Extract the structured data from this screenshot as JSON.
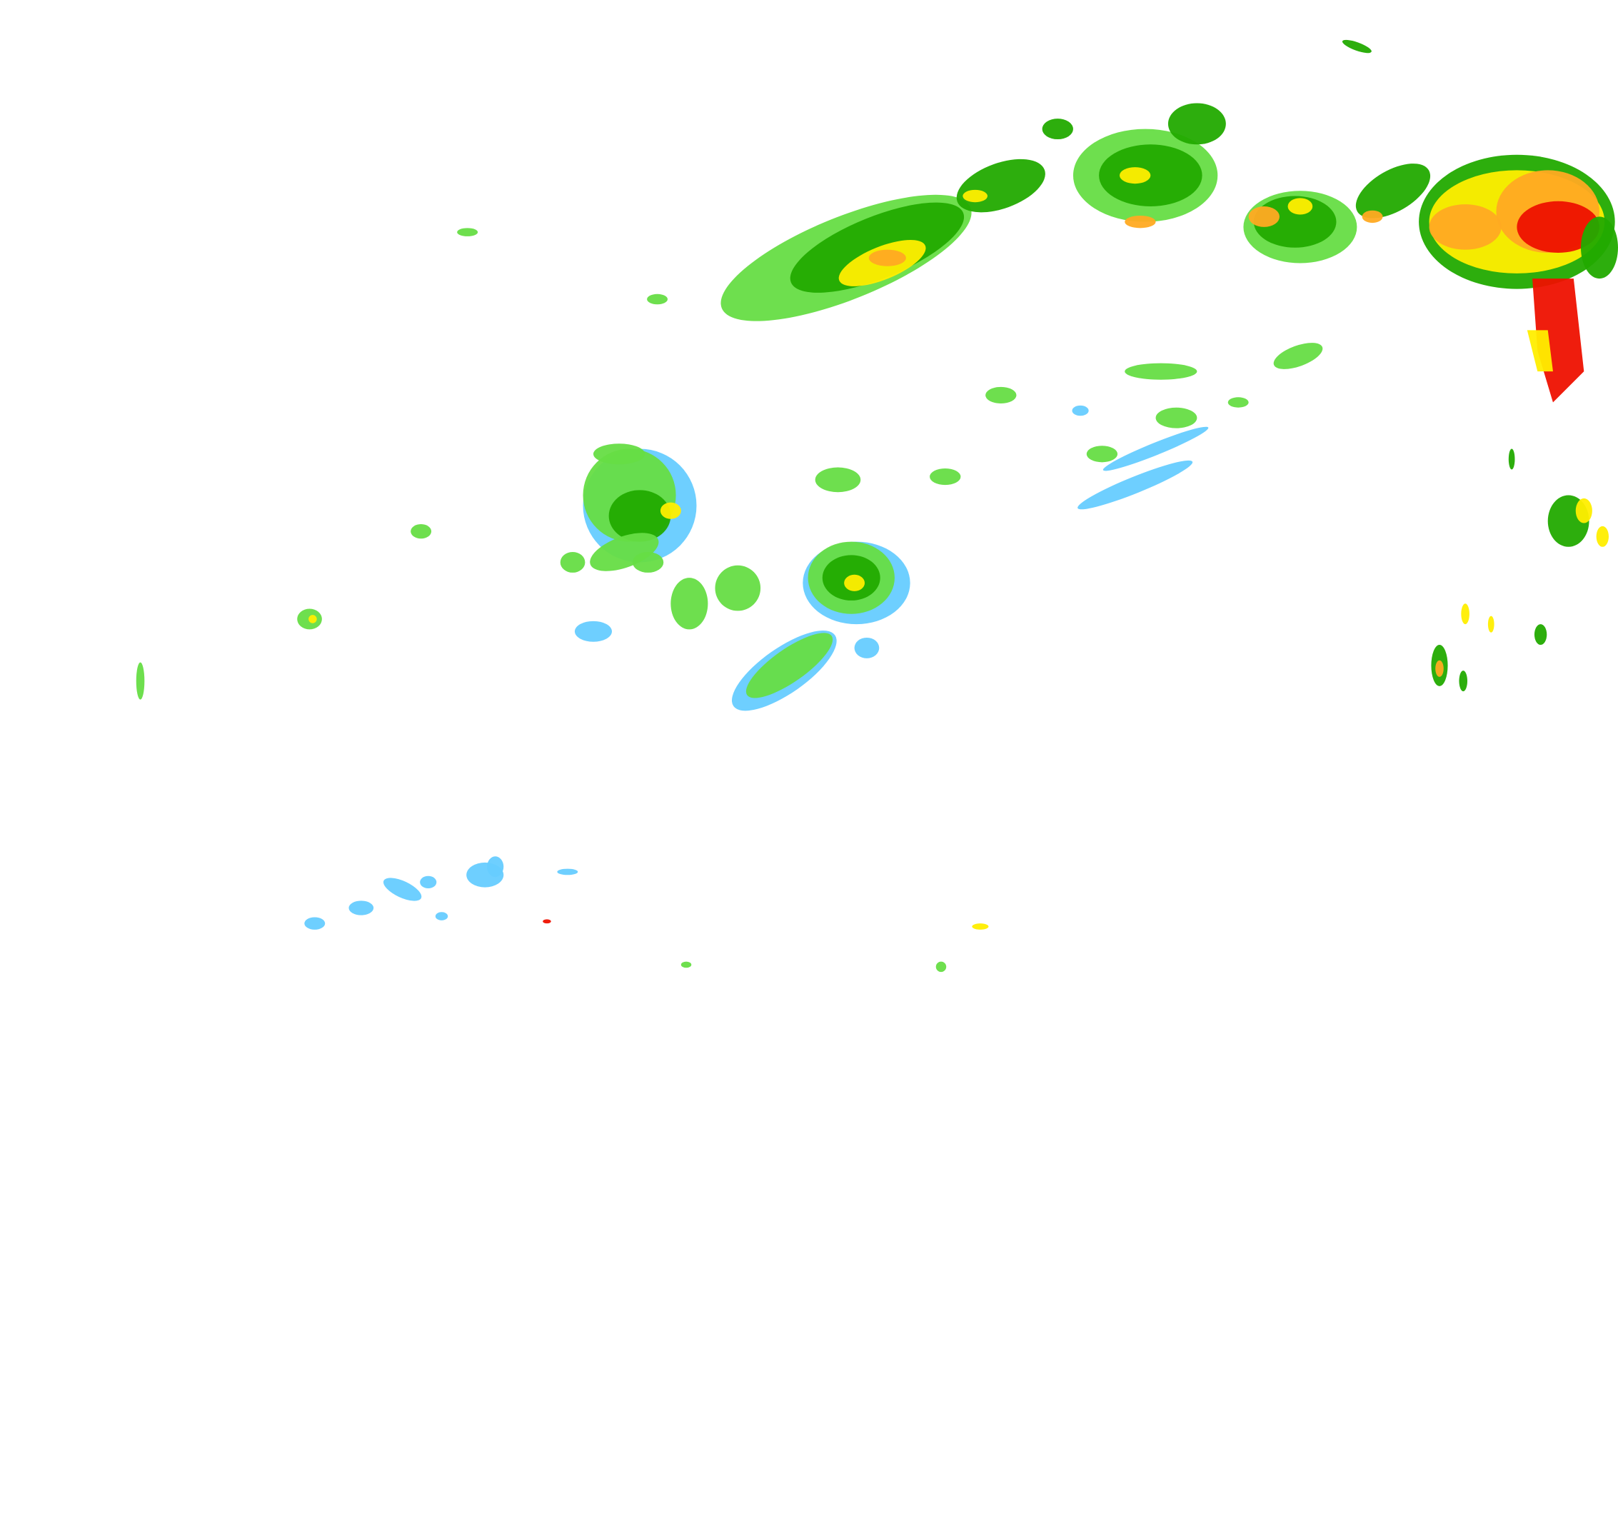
{
  "map": {
    "type": "radar-reflectivity",
    "background": "#ffffff",
    "palette": {
      "light_blue": "#66ccff",
      "light_green": "#66dd44",
      "green": "#22aa00",
      "dark_green": "#118800",
      "yellow": "#ffee00",
      "orange": "#ffaa22",
      "red": "#ee1100"
    }
  }
}
